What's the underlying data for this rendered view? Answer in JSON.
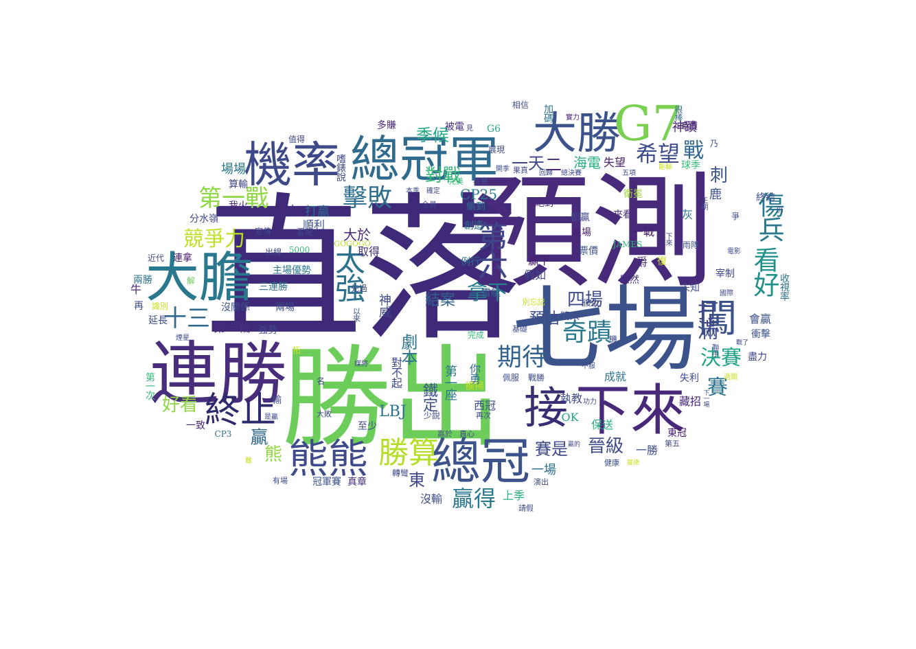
{
  "words": [
    {
      "text": "直落",
      "color": "#3e2a78"
    },
    {
      "text": "預測",
      "color": "#472b7a"
    },
    {
      "text": "勝出",
      "color": "#6ccd5a"
    },
    {
      "text": "七場",
      "color": "#3b528b"
    },
    {
      "text": "連勝",
      "color": "#472d7b"
    },
    {
      "text": "總冠軍",
      "color": "#2f6b8e"
    },
    {
      "text": "機率",
      "color": "#3e4989"
    },
    {
      "text": "大膽",
      "color": "#2a788e"
    },
    {
      "text": "大勝",
      "color": "#3b528b"
    },
    {
      "text": "G7",
      "color": "#7ad151"
    },
    {
      "text": "總冠",
      "color": "#3b528b"
    },
    {
      "text": "熊熊",
      "color": "#3e4a89"
    },
    {
      "text": "接",
      "color": "#3a2d74"
    },
    {
      "text": "下來",
      "color": "#482878"
    },
    {
      "text": "勝算",
      "color": "#b5de2b"
    },
    {
      "text": "終止",
      "color": "#2e2a6e"
    },
    {
      "text": "闖",
      "color": "#3b528b"
    },
    {
      "text": "第一戰",
      "color": "#8fd744"
    },
    {
      "text": "擊敗",
      "color": "#2e6e8e"
    },
    {
      "text": "太強",
      "color": "#2c728e"
    },
    {
      "text": "第六",
      "color": "#3f4788"
    },
    {
      "text": "看好",
      "color": "#21918c"
    },
    {
      "text": "傷兵",
      "color": "#2a788e"
    },
    {
      "text": "打滿",
      "color": "#3f4889"
    },
    {
      "text": "希望",
      "color": "#3e4c8a"
    },
    {
      "text": "戰",
      "color": "#31688e"
    },
    {
      "text": "刺",
      "color": "#3b528b"
    },
    {
      "text": "期待",
      "color": "#33638d"
    },
    {
      "text": "奇蹟",
      "color": "#2a788e"
    },
    {
      "text": "決賽",
      "color": "#20a386"
    },
    {
      "text": "賽",
      "color": "#2c718e"
    },
    {
      "text": "拿下",
      "color": "#277f8e"
    },
    {
      "text": "十三",
      "color": "#31688e"
    },
    {
      "text": "好看",
      "color": "#8fd744"
    },
    {
      "text": "競爭力",
      "color": "#bddf26"
    },
    {
      "text": "贏得",
      "color": "#2a788e"
    },
    {
      "text": "季候",
      "color": "#22a884"
    },
    {
      "text": "對戰",
      "color": "#35b779"
    },
    {
      "text": "四場",
      "color": "#3e4c8a"
    },
    {
      "text": "海電",
      "color": "#29af7f"
    },
    {
      "text": "失望",
      "color": "#481f70"
    },
    {
      "text": "鹿",
      "color": "#3b528b"
    },
    {
      "text": "一天",
      "color": "#3f4788"
    },
    {
      "text": "二",
      "color": "#482576"
    },
    {
      "text": "神蹟",
      "color": "#482475"
    },
    {
      "text": "劇本",
      "color": "#2c728e"
    },
    {
      "text": "預估",
      "color": "#3e4c8a"
    },
    {
      "text": "結案",
      "color": "#33638d"
    },
    {
      "text": "神威",
      "color": "#3e4989"
    },
    {
      "text": "一場",
      "color": "#2c728e"
    },
    {
      "text": "賽是",
      "color": "#3e4989"
    },
    {
      "text": "晉級",
      "color": "#3e4989"
    },
    {
      "text": "熊",
      "color": "#8fd744"
    },
    {
      "text": "東",
      "color": "#3f4788"
    },
    {
      "text": "贏",
      "color": "#31688e"
    },
    {
      "text": "LBJ",
      "color": "#2c728e"
    },
    {
      "text": "CP25",
      "color": "#2a788e"
    },
    {
      "text": "打贏",
      "color": "#31688e"
    },
    {
      "text": "順利",
      "color": "#3b528b"
    },
    {
      "text": "第七",
      "color": "#482878"
    },
    {
      "text": "場場",
      "color": "#2a788e"
    },
    {
      "text": "算輸",
      "color": "#3f4788"
    },
    {
      "text": "我火",
      "color": "#482878"
    },
    {
      "text": "分水嶺",
      "color": "#3f4788"
    },
    {
      "text": "大於",
      "color": "#482878"
    },
    {
      "text": "取得",
      "color": "#472d7b"
    },
    {
      "text": "主場優勢",
      "color": "#2a788e"
    },
    {
      "text": "三連勝",
      "color": "#2c728e"
    },
    {
      "text": "兩場",
      "color": "#3e4a89"
    },
    {
      "text": "沒關係",
      "color": "#3b528b"
    },
    {
      "text": "強勢",
      "color": "#3e4a89"
    },
    {
      "text": "第一輪",
      "color": "#472d7b"
    },
    {
      "text": "延長",
      "color": "#3e4c8a"
    },
    {
      "text": "連拿",
      "color": "#481769"
    },
    {
      "text": "兩勝",
      "color": "#2c728e"
    },
    {
      "text": "一致",
      "color": "#482878"
    },
    {
      "text": "第一座",
      "color": "#2a788e"
    },
    {
      "text": "對不起",
      "color": "#3e4989"
    },
    {
      "text": "你勇",
      "color": "#2f6c8e"
    },
    {
      "text": "西冠",
      "color": "#3e4c8a"
    },
    {
      "text": "鐵定",
      "color": "#3b528b"
    },
    {
      "text": "至少",
      "color": "#3e4989"
    },
    {
      "text": "沒輸",
      "color": "#3e4c8a"
    },
    {
      "text": "上季",
      "color": "#28ae80"
    },
    {
      "text": "冠軍賽",
      "color": "#3b528b"
    },
    {
      "text": "真章",
      "color": "#472d7b"
    },
    {
      "text": "OK",
      "color": "#20a486"
    },
    {
      "text": "執教",
      "color": "#3e4c8a"
    },
    {
      "text": "成就",
      "color": "#2c728e"
    },
    {
      "text": "保送",
      "color": "#29af7f"
    },
    {
      "text": "一勝",
      "color": "#3e4c8a"
    },
    {
      "text": "藏招",
      "color": "#482878"
    },
    {
      "text": "東冠",
      "color": "#481c6e"
    },
    {
      "text": "失利",
      "color": "#3e4c8a"
    },
    {
      "text": "爵",
      "color": "#482878"
    },
    {
      "text": "假如",
      "color": "#3e4989"
    },
    {
      "text": "贏下",
      "color": "#481f70"
    },
    {
      "text": "雷艇",
      "color": "#31688e"
    },
    {
      "text": "精采",
      "color": "#3e4c8a"
    },
    {
      "text": "票價",
      "color": "#3b528b"
    },
    {
      "text": "雖然",
      "color": "#472d7b"
    },
    {
      "text": "宰制",
      "color": "#3e4989"
    },
    {
      "text": "未知",
      "color": "#3e4989"
    },
    {
      "text": "會贏",
      "color": "#3b528b"
    },
    {
      "text": "衝擊",
      "color": "#3b528b"
    },
    {
      "text": "盡力",
      "color": "#3f4788"
    },
    {
      "text": "收視率",
      "color": "#2c728e"
    },
    {
      "text": "終結",
      "color": "#3e4c8a"
    },
    {
      "text": "爭",
      "color": "#3e4989"
    },
    {
      "text": "雨隊",
      "color": "#3b528b"
    },
    {
      "text": "灰",
      "color": "#2c728e"
    },
    {
      "text": "來看",
      "color": "#472d7b"
    },
    {
      "text": "都贏",
      "color": "#3f4788"
    },
    {
      "text": "主場",
      "color": "#481f70"
    },
    {
      "text": "一戰",
      "color": "#481f70"
    },
    {
      "text": "創造",
      "color": "#2c728e"
    },
    {
      "text": "偷到",
      "color": "#2c728e"
    },
    {
      "text": "絕對",
      "color": "#482878"
    },
    {
      "text": "例行",
      "color": "#2c728e"
    },
    {
      "text": "球季",
      "color": "#3bbb75"
    },
    {
      "text": "神蹟",
      "color": "#482878"
    },
    {
      "text": "衛冕",
      "color": "#a0da39"
    },
    {
      "text": "多賺",
      "color": "#482878"
    },
    {
      "text": "被電",
      "color": "#472d7b"
    },
    {
      "text": "G6",
      "color": "#29af7f"
    },
    {
      "text": "很棒",
      "color": "#31688e"
    },
    {
      "text": "加碼",
      "color": "#2c728e"
    },
    {
      "text": "相信",
      "color": "#3e4c8a"
    },
    {
      "text": "實力",
      "color": "#482878"
    },
    {
      "text": "值得",
      "color": "#3f4788"
    },
    {
      "text": "嗜錶說",
      "color": "#3e4989"
    },
    {
      "text": "出線",
      "color": "#3e4c8a"
    },
    {
      "text": "5000",
      "color": "#3bbb75"
    },
    {
      "text": "GOGOGO",
      "color": "#b5de2b"
    },
    {
      "text": "宣傳",
      "color": "#3f4788"
    },
    {
      "text": "雷龍",
      "color": "#3f4788"
    },
    {
      "text": "近代",
      "color": "#3e4989"
    },
    {
      "text": "解",
      "color": "#6ccd5a"
    },
    {
      "text": "牛",
      "color": "#482878"
    },
    {
      "text": "再",
      "color": "#3e4989"
    },
    {
      "text": "識別",
      "color": "#c8e020"
    },
    {
      "text": "以來",
      "color": "#3b528b"
    },
    {
      "text": "先過",
      "color": "#3e4989"
    },
    {
      "text": "大敗",
      "color": "#3e4989"
    },
    {
      "text": "名",
      "color": "#3f4788"
    },
    {
      "text": "輸",
      "color": "#3e4989"
    },
    {
      "text": "第一次",
      "color": "#35b779"
    },
    {
      "text": "是贏",
      "color": "#3e4989"
    },
    {
      "text": "有場",
      "color": "#3e4989"
    },
    {
      "text": "轉彎",
      "color": "#3e4989"
    },
    {
      "text": "請假",
      "color": "#3e4989"
    },
    {
      "text": "演出",
      "color": "#3e4989"
    },
    {
      "text": "健康",
      "color": "#3e4989"
    },
    {
      "text": "第五",
      "color": "#3e4989"
    },
    {
      "text": "JAMES",
      "color": "#35b779"
    },
    {
      "text": "下來",
      "color": "#3e4989"
    },
    {
      "text": "橫掃",
      "color": "#c8e020"
    },
    {
      "text": "少說",
      "color": "#3e4989"
    },
    {
      "text": "再次",
      "color": "#3e4989"
    },
    {
      "text": "高於",
      "color": "#3e4989"
    },
    {
      "text": "真心",
      "color": "#3e4989"
    },
    {
      "text": "CP3",
      "color": "#2c728e"
    },
    {
      "text": "完成",
      "color": "#35b779"
    },
    {
      "text": "基礎",
      "color": "#3e4989"
    },
    {
      "text": "佩服",
      "color": "#3e4989"
    },
    {
      "text": "戰勝",
      "color": "#3e4989"
    },
    {
      "text": "不服",
      "color": "#3e4989"
    },
    {
      "text": "功力",
      "color": "#3e4989"
    },
    {
      "text": "復仇",
      "color": "#3e4989"
    },
    {
      "text": "國際",
      "color": "#3e4989"
    },
    {
      "text": "過關",
      "color": "#c8e020"
    },
    {
      "text": "聯手",
      "color": "#3e4989"
    },
    {
      "text": "別忘記",
      "color": "#c8e020"
    },
    {
      "text": "復",
      "color": "#c8e020"
    },
    {
      "text": "機",
      "color": "#3e4989"
    },
    {
      "text": "五項",
      "color": "#3e4989"
    },
    {
      "text": "乃",
      "color": "#3e4989"
    },
    {
      "text": "王朝",
      "color": "#3e4989"
    },
    {
      "text": "仍",
      "color": "#3e4989"
    },
    {
      "text": "電影",
      "color": "#3e4989"
    },
    {
      "text": "全員",
      "color": "#3e4989"
    },
    {
      "text": "確定",
      "color": "#3e4989"
    },
    {
      "text": "本季",
      "color": "#3e4989"
    },
    {
      "text": "完美",
      "color": "#35b779"
    },
    {
      "text": "我賽",
      "color": "#3e4989"
    },
    {
      "text": "回歸",
      "color": "#3e4989"
    },
    {
      "text": "總決賽",
      "color": "#3e4989"
    },
    {
      "text": "開季",
      "color": "#3e4989"
    },
    {
      "text": "果真",
      "color": "#3e4989"
    },
    {
      "text": "展現",
      "color": "#3e4989"
    },
    {
      "text": "能輸",
      "color": "#c8e020"
    },
    {
      "text": "見",
      "color": "#3e4989"
    },
    {
      "text": "煙星",
      "color": "#3e4989"
    },
    {
      "text": "拓",
      "color": "#c8e020"
    },
    {
      "text": "媒將",
      "color": "#3e4989"
    },
    {
      "text": "下一場",
      "color": "#3e4989"
    },
    {
      "text": "戰了",
      "color": "#3e4989"
    },
    {
      "text": "贏的",
      "color": "#3e4989"
    },
    {
      "text": "羅德",
      "color": "#c8e020"
    },
    {
      "text": "難",
      "color": "#c8e020"
    }
  ]
}
